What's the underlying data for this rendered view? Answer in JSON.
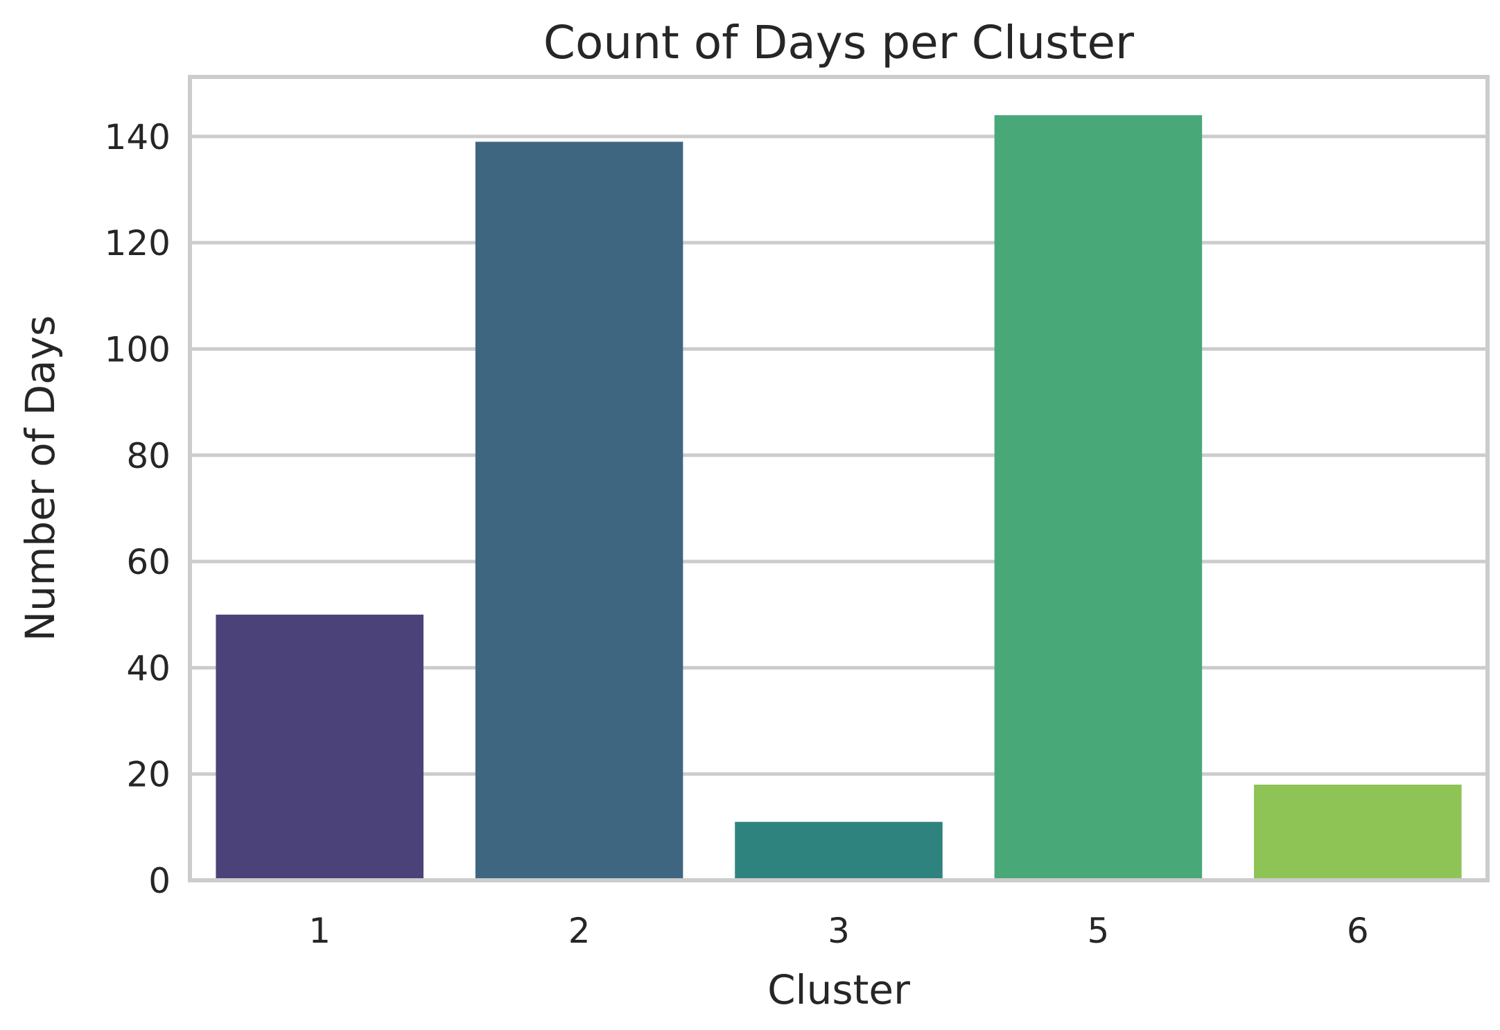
{
  "chart_data": {
    "type": "bar",
    "title": "Count of Days per Cluster",
    "xlabel": "Cluster",
    "ylabel": "Number of Days",
    "categories": [
      "1",
      "2",
      "3",
      "5",
      "6"
    ],
    "values": [
      50,
      139,
      11,
      144,
      18
    ],
    "colors": [
      "#4b4279",
      "#3f6680",
      "#2e837e",
      "#48a878",
      "#8ec355"
    ],
    "ylim": [
      0,
      151.2
    ],
    "yticks": [
      0,
      20,
      40,
      60,
      80,
      100,
      120,
      140
    ],
    "ytick_labels": [
      "0",
      "20",
      "40",
      "60",
      "80",
      "100",
      "120",
      "140"
    ],
    "grid": "horizontal",
    "grid_color": "#cccccc",
    "background": "#ffffff"
  }
}
